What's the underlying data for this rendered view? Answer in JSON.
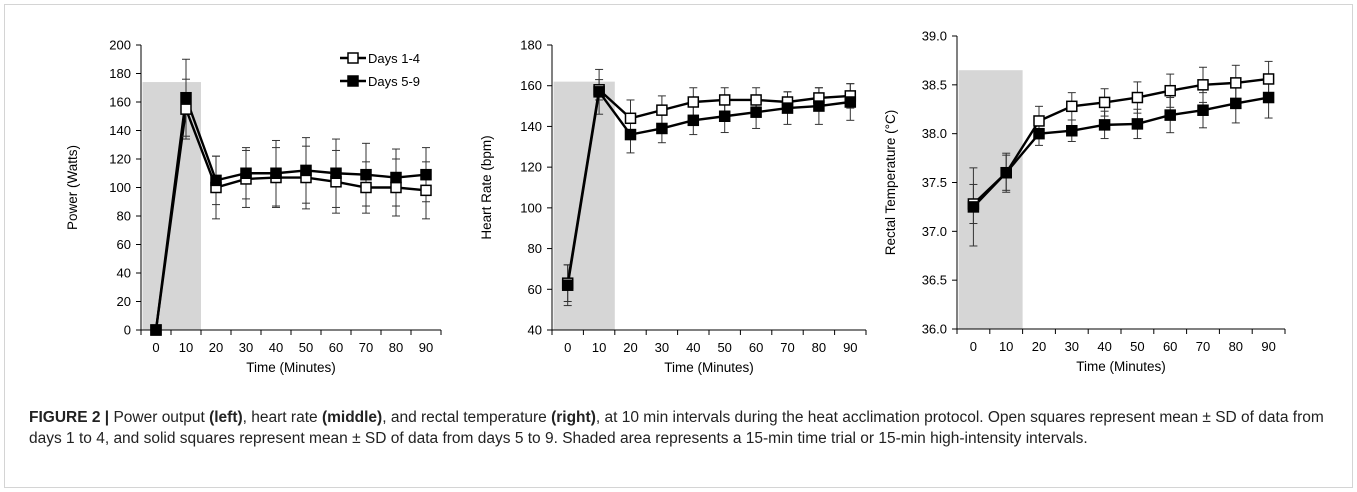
{
  "caption": {
    "label": "FIGURE 2 |",
    "p1": " Power output ",
    "b1": "(left)",
    "p2": ", heart rate ",
    "b2": "(middle)",
    "p3": ", and rectal temperature ",
    "b3": "(right)",
    "p4": ", at 10 min intervals during the heat acclimation protocol. Open squares represent mean ± SD of data from days 1 to 4, and solid squares represent mean ± SD of data from days 5 to 9. Shaded area represents a 15-min time trial or 15-min high-intensity intervals."
  },
  "chart_data": [
    {
      "type": "line",
      "panel": "left",
      "xlabel": "Time (Minutes)",
      "ylabel": "Power (Watts)",
      "x": [
        0,
        10,
        20,
        30,
        40,
        50,
        60,
        70,
        80,
        90
      ],
      "ylim": [
        0,
        200
      ],
      "yticks": [
        "0",
        "20",
        "40",
        "60",
        "80",
        "100",
        "120",
        "140",
        "160",
        "180",
        "200"
      ],
      "shaded_x": [
        0,
        15
      ],
      "shaded_ytop": 174,
      "legend": "top-right",
      "series": [
        {
          "name": "Days 1-4",
          "marker": "open-square",
          "values": [
            0,
            155,
            100,
            106,
            107,
            107,
            104,
            100,
            100,
            98
          ],
          "sd": [
            0,
            21,
            22,
            20,
            21,
            22,
            22,
            18,
            20,
            20
          ]
        },
        {
          "name": "Days 5-9",
          "marker": "solid-square",
          "values": [
            0,
            163,
            105,
            110,
            110,
            112,
            110,
            109,
            107,
            109
          ],
          "sd": [
            0,
            27,
            17,
            18,
            23,
            23,
            24,
            22,
            20,
            19
          ]
        }
      ]
    },
    {
      "type": "line",
      "panel": "middle",
      "xlabel": "Time (Minutes)",
      "ylabel": "Heart Rate (bpm)",
      "x": [
        0,
        10,
        20,
        30,
        40,
        50,
        60,
        70,
        80,
        90
      ],
      "ylim": [
        40,
        180
      ],
      "yticks": [
        "40",
        "60",
        "80",
        "100",
        "120",
        "140",
        "160",
        "180"
      ],
      "shaded_x": [
        0,
        15
      ],
      "shaded_ytop": 162,
      "series": [
        {
          "name": "Days 1-4",
          "marker": "open-square",
          "values": [
            63,
            158,
            144,
            148,
            152,
            153,
            153,
            152,
            154,
            155
          ],
          "sd": [
            9,
            5,
            9,
            7,
            7,
            6,
            6,
            5,
            5,
            6
          ]
        },
        {
          "name": "Days 5-9",
          "marker": "solid-square",
          "values": [
            62,
            157,
            136,
            139,
            143,
            145,
            147,
            149,
            150,
            152
          ],
          "sd": [
            10,
            11,
            9,
            7,
            7,
            8,
            8,
            8,
            9,
            9
          ]
        }
      ]
    },
    {
      "type": "line",
      "panel": "right",
      "xlabel": "Time (Minutes)",
      "ylabel": "Rectal Temperature (°C)",
      "x": [
        0,
        10,
        20,
        30,
        40,
        50,
        60,
        70,
        80,
        90
      ],
      "ylim": [
        36.0,
        39.0
      ],
      "yticks": [
        "36.0",
        "36.5",
        "37.0",
        "37.5",
        "38.0",
        "38.5",
        "39.0"
      ],
      "shaded_x": [
        0,
        15
      ],
      "shaded_ytop": 38.65,
      "series": [
        {
          "name": "Days 1-4",
          "marker": "open-square",
          "values": [
            37.28,
            37.6,
            38.13,
            38.28,
            38.32,
            38.37,
            38.44,
            38.5,
            38.52,
            38.56
          ],
          "sd": [
            0.2,
            0.18,
            0.15,
            0.14,
            0.14,
            0.16,
            0.17,
            0.18,
            0.18,
            0.18
          ]
        },
        {
          "name": "Days 5-9",
          "marker": "solid-square",
          "values": [
            37.25,
            37.6,
            38.0,
            38.03,
            38.09,
            38.1,
            38.19,
            38.24,
            38.31,
            38.37
          ],
          "sd": [
            0.4,
            0.2,
            0.12,
            0.11,
            0.14,
            0.15,
            0.18,
            0.18,
            0.2,
            0.21
          ]
        }
      ]
    }
  ]
}
